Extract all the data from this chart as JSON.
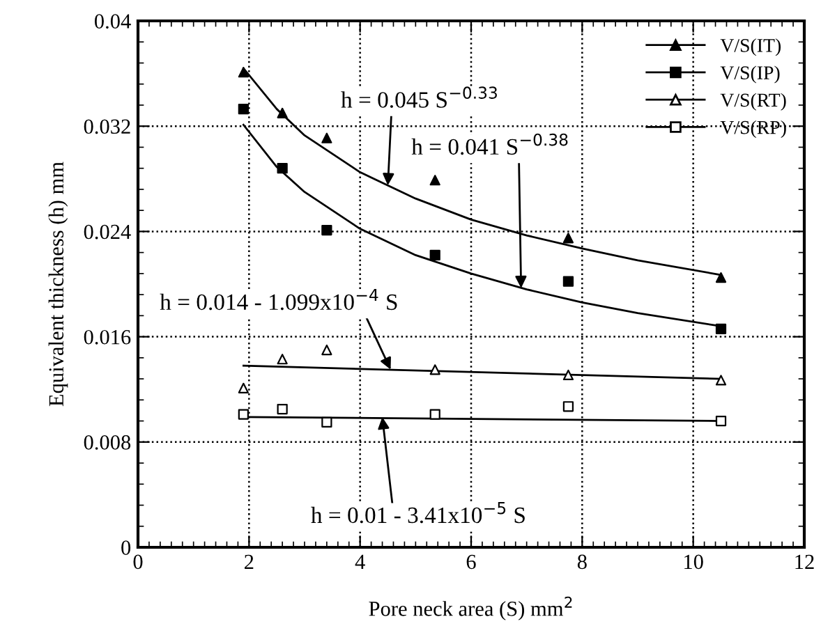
{
  "chart_data": {
    "type": "scatter",
    "xlabel": "Pore neck area (S) mm$^{2}$",
    "ylabel": "Equivalent thickness (h) mm",
    "xlim": [
      0,
      12
    ],
    "xticks": [
      0,
      2,
      4,
      6,
      8,
      10,
      12
    ],
    "ylim": [
      0,
      0.04
    ],
    "yticks": [
      0,
      0.008,
      0.016,
      0.024,
      0.032,
      0.04
    ],
    "grid": true,
    "legend": "top right",
    "series": [
      {
        "name": "V/S(IT)",
        "color": "#000000",
        "marker": "triangle",
        "x": [
          1.9,
          2.6,
          3.4,
          5.35,
          7.75,
          10.5
        ],
        "values": [
          0.0361,
          0.033,
          0.0311,
          0.0279,
          0.0235,
          0.0205
        ]
      },
      {
        "name": "V/S(IP)",
        "color": "#000000",
        "marker": "square",
        "x": [
          1.9,
          2.6,
          3.4,
          5.35,
          7.75,
          10.5
        ],
        "values": [
          0.0333,
          0.0288,
          0.0241,
          0.0222,
          0.0202,
          0.0166
        ]
      },
      {
        "name": "V/S(RT)",
        "color": "#000000",
        "marker": "triangle-open",
        "x": [
          1.9,
          2.6,
          3.4,
          5.35,
          7.75,
          10.5
        ],
        "values": [
          0.0121,
          0.0143,
          0.015,
          0.0135,
          0.0131,
          0.0127
        ]
      },
      {
        "name": "V/S(RP)",
        "color": "#000000",
        "marker": "square-open",
        "x": [
          1.9,
          2.6,
          3.4,
          5.35,
          7.75,
          10.5
        ],
        "values": [
          0.0101,
          0.0105,
          0.0095,
          0.0101,
          0.0107,
          0.0096
        ]
      },
      {
        "type": "line",
        "color": "#000000",
        "marker": "none",
        "x": [
          1.9,
          2.5,
          3,
          4,
          5,
          6,
          7,
          8,
          9,
          10.5
        ],
        "values": [
          0.0364,
          0.0333,
          0.0313,
          0.0285,
          0.0265,
          0.0249,
          0.0237,
          0.0227,
          0.0218,
          0.0207
        ]
      },
      {
        "type": "line",
        "color": "#000000",
        "marker": "none",
        "x": [
          1.9,
          2.5,
          3,
          4,
          5,
          6,
          7,
          8,
          9,
          10.5
        ],
        "values": [
          0.0321,
          0.0289,
          0.027,
          0.0242,
          0.0222,
          0.0208,
          0.0196,
          0.0186,
          0.0178,
          0.0168
        ]
      },
      {
        "type": "line",
        "color": "#000000",
        "marker": "none",
        "x": [
          1.9,
          10.5
        ],
        "values": [
          0.0138,
          0.0128
        ]
      },
      {
        "type": "line",
        "color": "#000000",
        "marker": "none",
        "x": [
          1.9,
          10.5
        ],
        "values": [
          0.0099,
          0.0096
        ]
      }
    ],
    "annotations": [
      {
        "text": "h = 0.045 S$^{−0.33}$",
        "x": 4.5,
        "y": 0.0275
      },
      {
        "text": "h = 0.041 S$^{−0.38}$",
        "x": 6.9,
        "y": 0.0197
      },
      {
        "text": "h = 0.014 - 1.099x10$^{−4}$ S",
        "x": 4.55,
        "y": 0.0135
      },
      {
        "text": "h = 0.01 - 3.41x10$^{−5}$ S",
        "x": 4.4,
        "y": 0.0099
      }
    ]
  }
}
